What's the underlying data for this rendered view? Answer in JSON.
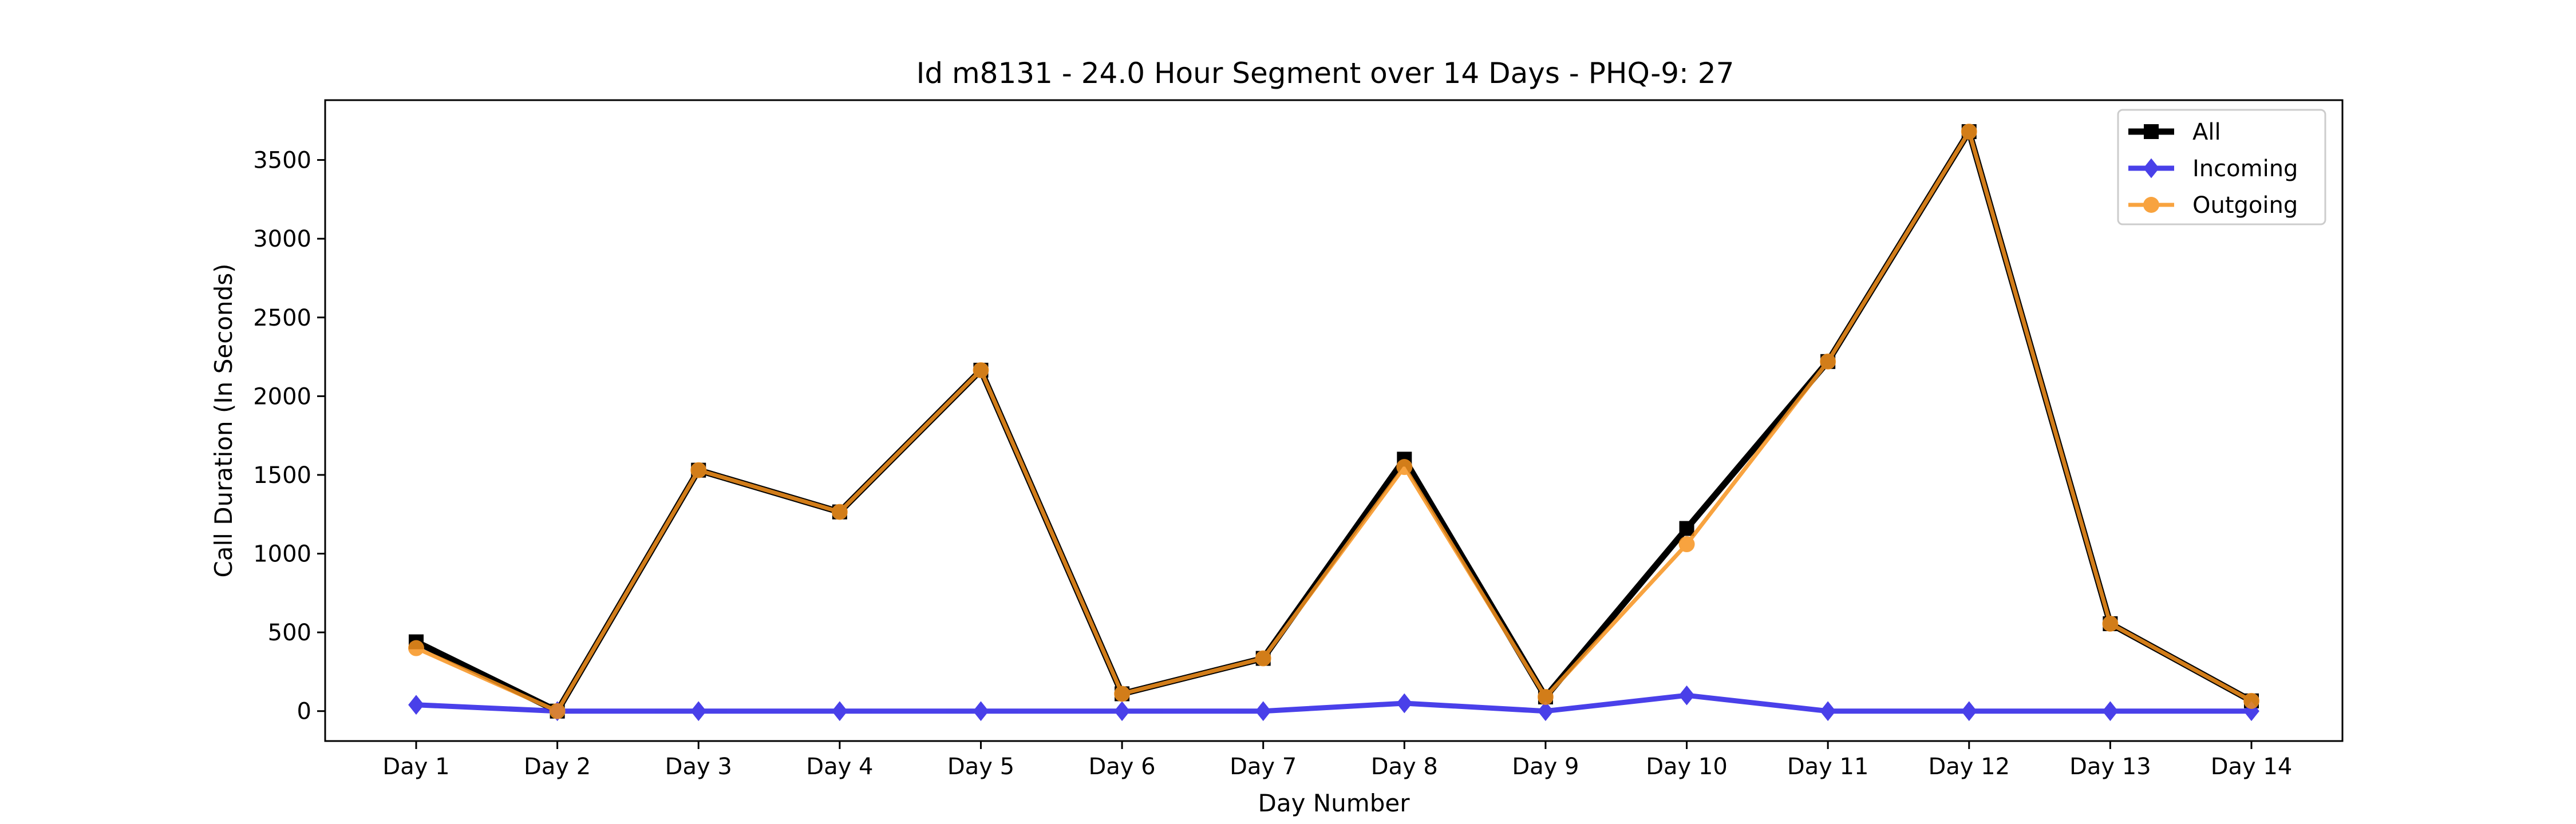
{
  "chart_data": {
    "type": "line",
    "title": "Id m8131 - 24.0 Hour Segment over 14 Days - PHQ-9: 27",
    "xlabel": "Day Number",
    "ylabel": "Call Duration (In Seconds)",
    "categories": [
      "Day 1",
      "Day 2",
      "Day 3",
      "Day 4",
      "Day 5",
      "Day 6",
      "Day 7",
      "Day 8",
      "Day 9",
      "Day 10",
      "Day 11",
      "Day 12",
      "Day 13",
      "Day 14"
    ],
    "ylim": [
      -190,
      3880
    ],
    "yticks": [
      0,
      500,
      1000,
      1500,
      2000,
      2500,
      3000,
      3500
    ],
    "grid": false,
    "legend_position": "top-right",
    "series": [
      {
        "name": "All",
        "color": "#000000",
        "marker": "square",
        "values": [
          440,
          0,
          1530,
          1265,
          2165,
          110,
          335,
          1600,
          90,
          1160,
          2220,
          3680,
          555,
          65
        ]
      },
      {
        "name": "Incoming",
        "color": "#2a1fe6",
        "marker": "diamond",
        "values": [
          40,
          0,
          0,
          0,
          0,
          0,
          0,
          50,
          0,
          100,
          0,
          0,
          0,
          0
        ]
      },
      {
        "name": "Outgoing",
        "color": "#f7931e",
        "marker": "circle",
        "values": [
          400,
          0,
          1530,
          1265,
          2165,
          110,
          335,
          1550,
          90,
          1060,
          2220,
          3680,
          555,
          65
        ]
      }
    ]
  }
}
